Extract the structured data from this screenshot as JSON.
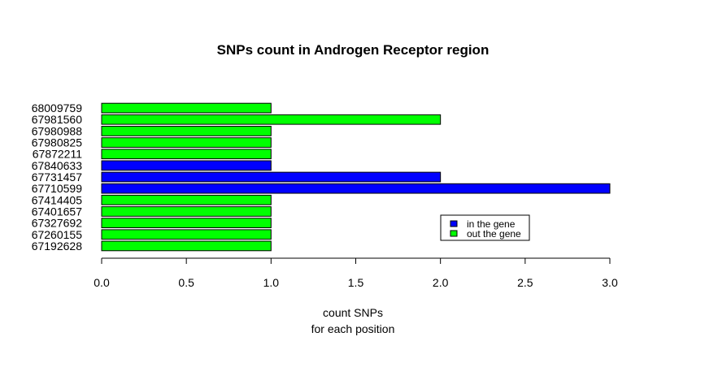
{
  "chart_data": {
    "type": "bar",
    "orientation": "horizontal",
    "title": "SNPs count in Androgen Receptor region",
    "xlabel": "count SNPs",
    "xlabel_line2": "for each position",
    "xlim": [
      0,
      3
    ],
    "xticks": [
      "0.0",
      "0.5",
      "1.0",
      "1.5",
      "2.0",
      "2.5",
      "3.0"
    ],
    "xtick_values": [
      0,
      0.5,
      1,
      1.5,
      2,
      2.5,
      3
    ],
    "categories": [
      "67192628",
      "67260155",
      "67327692",
      "67401657",
      "67414405",
      "67710599",
      "67731457",
      "67840633",
      "67872211",
      "67980825",
      "67980988",
      "67981560",
      "68009759"
    ],
    "values": [
      1,
      1,
      1,
      1,
      1,
      3,
      2,
      1,
      1,
      1,
      1,
      2,
      1
    ],
    "groups": [
      "out the gene",
      "out the gene",
      "out the gene",
      "out the gene",
      "out the gene",
      "in the gene",
      "in the gene",
      "in the gene",
      "out the gene",
      "out the gene",
      "out the gene",
      "out the gene",
      "out the gene"
    ],
    "legend": {
      "position": "bottom-right",
      "entries": [
        {
          "label": "in the gene",
          "color": "#0000ff"
        },
        {
          "label": "out the gene",
          "color": "#00ff00"
        }
      ]
    },
    "grid": false
  }
}
